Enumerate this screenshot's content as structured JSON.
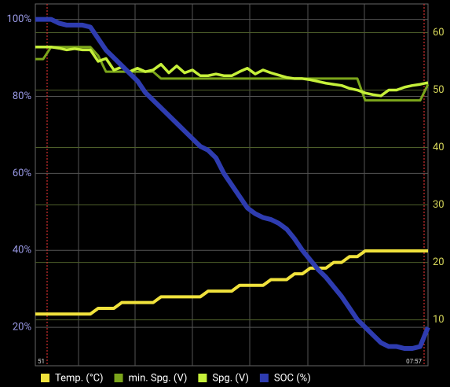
{
  "chart_data": {
    "type": "line",
    "x": [
      0,
      2,
      4,
      6,
      8,
      10,
      12,
      14,
      16,
      18,
      20,
      22,
      24,
      26,
      28,
      30,
      32,
      34,
      36,
      38,
      40,
      42,
      44,
      46,
      48,
      50,
      52,
      54,
      56,
      58,
      60,
      62,
      64,
      66,
      68,
      70,
      72,
      74,
      76,
      78,
      80,
      82,
      84,
      86,
      88,
      90,
      92,
      94,
      96,
      98,
      100
    ],
    "xlim": [
      0,
      100
    ],
    "xticks": [
      {
        "value": 3,
        "label": "51"
      },
      {
        "value": 99,
        "label": "07:57"
      }
    ],
    "xgrid": [
      11,
      25.4,
      40,
      54.6,
      69.4,
      83.8
    ],
    "ylim": [
      10,
      104
    ],
    "yticks": [
      {
        "value": 20,
        "label": "20%"
      },
      {
        "value": 40,
        "label": "40%"
      },
      {
        "value": 60,
        "label": "60%"
      },
      {
        "value": 80,
        "label": "80%"
      },
      {
        "value": 100,
        "label": "100%"
      }
    ],
    "y2lim": [
      2,
      65
    ],
    "y2ticks": [
      10,
      20,
      30,
      40,
      50,
      60
    ],
    "grid": true,
    "legend": "bottom",
    "series": [
      {
        "name": "Temp. (°C)",
        "color": "#f0e23c",
        "axis": "y2",
        "values": [
          11,
          11,
          11,
          11,
          11,
          11,
          11,
          11,
          12,
          12,
          12,
          13,
          13,
          13,
          13,
          13,
          14,
          14,
          14,
          14,
          14,
          14,
          15,
          15,
          15,
          15,
          16,
          16,
          16,
          16,
          17,
          17,
          17,
          18,
          18,
          19,
          19,
          19,
          20,
          20,
          21,
          21,
          22,
          22,
          22,
          22,
          22,
          22,
          22,
          22,
          22
        ]
      },
      {
        "name": "min. Spg. (V)",
        "color": "#7ba51b",
        "axis": "y2",
        "values": [
          55.4,
          55.4,
          57.5,
          57.5,
          57.5,
          57.5,
          57.5,
          57.5,
          56,
          53.2,
          53.2,
          53.2,
          53.2,
          53.2,
          53.2,
          53.2,
          52,
          52,
          52,
          52,
          52,
          52,
          52,
          52,
          52,
          52,
          52,
          52,
          52,
          52,
          52,
          52,
          52,
          52,
          52,
          52,
          52,
          52,
          52,
          52,
          52,
          52,
          48.2,
          48.2,
          48.2,
          48.2,
          48.2,
          48.2,
          48.2,
          48.2,
          51
        ]
      },
      {
        "name": "Spg. (V)",
        "color": "#c6f03a",
        "axis": "y2",
        "values": [
          57.5,
          57.5,
          57.5,
          57.3,
          57,
          57.2,
          57,
          57,
          55,
          55.5,
          53.5,
          54,
          53.2,
          53.8,
          53.2,
          53.5,
          54.5,
          53,
          54.2,
          53,
          53.5,
          52.5,
          52.5,
          52.8,
          52.5,
          52.5,
          53.2,
          53.8,
          52.8,
          53.5,
          53,
          52.6,
          52.2,
          52,
          52,
          51.8,
          51.5,
          51.2,
          51,
          50.8,
          50.3,
          50,
          49.5,
          49.2,
          49,
          50,
          50,
          50.5,
          50.8,
          51,
          51.3
        ]
      },
      {
        "name": "SOC (%)",
        "color": "#2e3cb0",
        "values": [
          100,
          100,
          100,
          99,
          98.5,
          98.5,
          98.5,
          98,
          95,
          92,
          90,
          88,
          86,
          84,
          81,
          79,
          77,
          75,
          73,
          71,
          69,
          67,
          66,
          64,
          60,
          57,
          54,
          51,
          49.5,
          48.5,
          48,
          47,
          45.5,
          43,
          40,
          37.5,
          35,
          33,
          30.5,
          28,
          25,
          22,
          20,
          18,
          16,
          15,
          15,
          14.5,
          14.5,
          15,
          20
        ]
      }
    ]
  }
}
